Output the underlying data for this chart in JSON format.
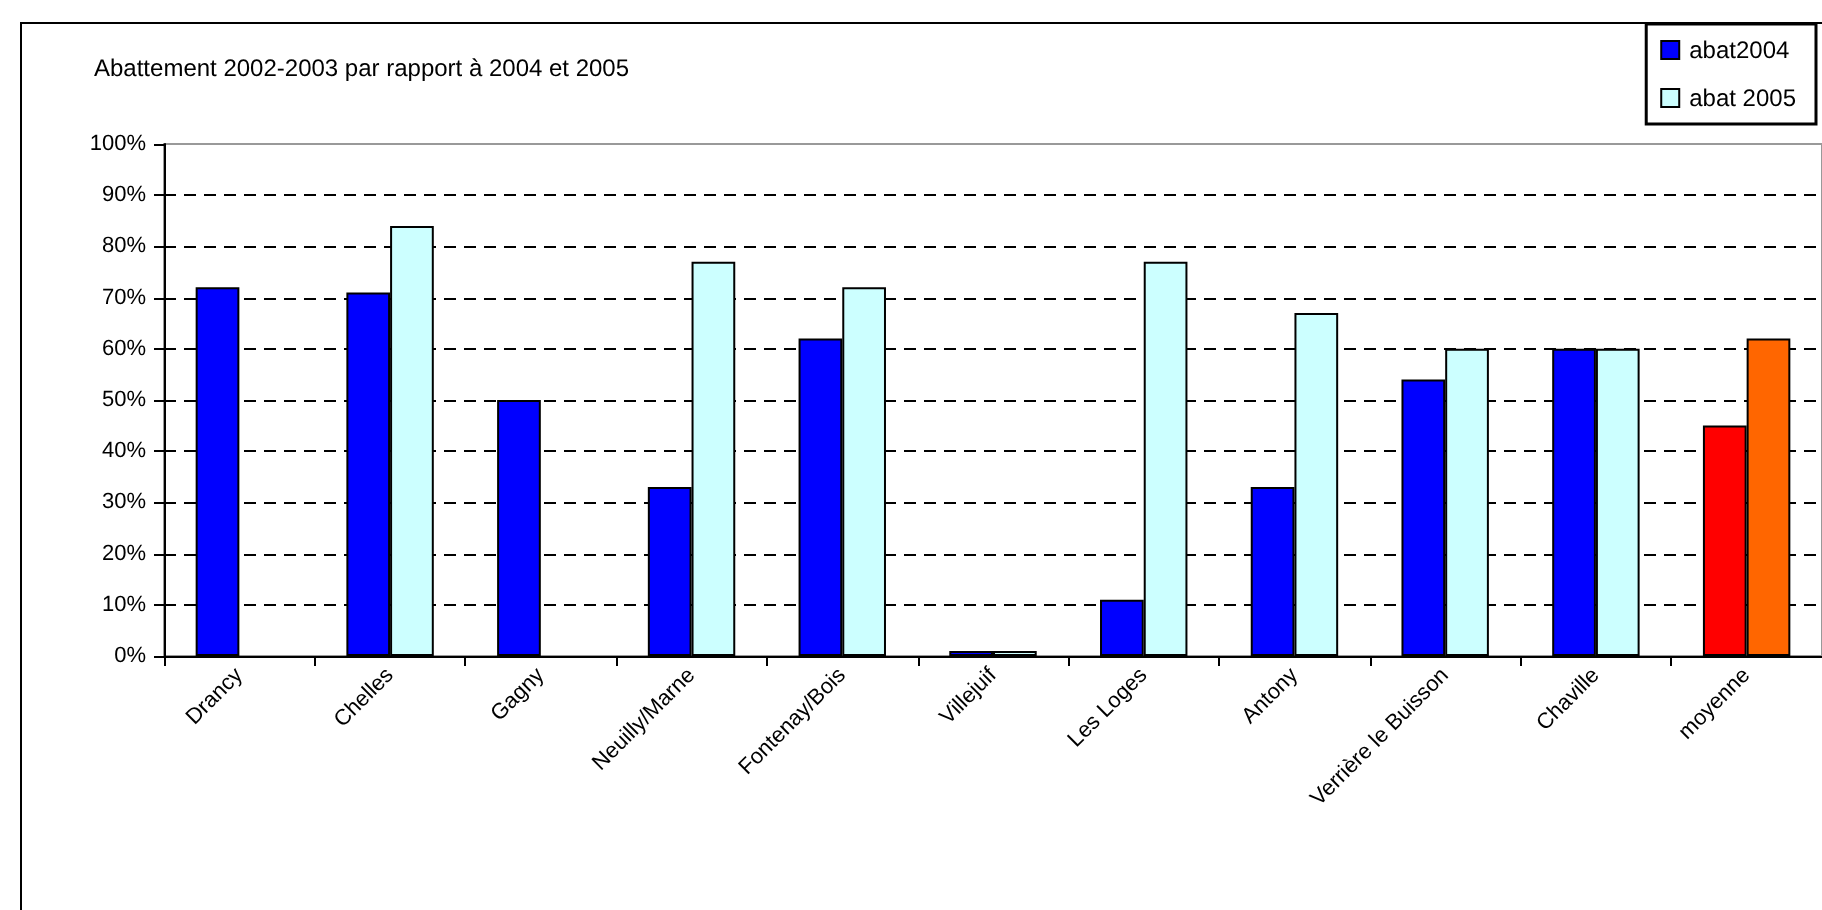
{
  "chart_data": {
    "type": "bar",
    "title": "Abattement 2002-2003 par rapport à 2004 et 2005",
    "categories": [
      "Drancy",
      "Chelles",
      "Gagny",
      "Neuilly/Marne",
      "Fontenay/Bois",
      "Villejuif",
      "Les Loges",
      "Antony",
      "Verrière le Buisson",
      "Chaville",
      "moyenne"
    ],
    "series": [
      {
        "name": "abat2004",
        "color": "#0000ff",
        "colors": [
          "#0000ff",
          "#0000ff",
          "#0000ff",
          "#0000ff",
          "#0000ff",
          "#0000ff",
          "#0000ff",
          "#0000ff",
          "#0000ff",
          "#0000ff",
          "#ff0000"
        ],
        "values": [
          72,
          71,
          50,
          33,
          62,
          1,
          11,
          33,
          54,
          60,
          45
        ]
      },
      {
        "name": "abat 2005",
        "color": "#ccffff",
        "colors": [
          null,
          "#ccffff",
          null,
          "#ccffff",
          "#ccffff",
          "#ccffff",
          "#ccffff",
          "#ccffff",
          "#ccffff",
          "#ccffff",
          "#ff6600"
        ],
        "values": [
          null,
          84,
          null,
          77,
          72,
          1,
          77,
          67,
          60,
          60,
          62
        ]
      }
    ],
    "ylim": [
      0,
      100
    ],
    "yticks": [
      {
        "value": 0,
        "label": "0%"
      },
      {
        "value": 10,
        "label": "10%"
      },
      {
        "value": 20,
        "label": "20%"
      },
      {
        "value": 30,
        "label": "30%"
      },
      {
        "value": 40,
        "label": "40%"
      },
      {
        "value": 50,
        "label": "50%"
      },
      {
        "value": 60,
        "label": "60%"
      },
      {
        "value": 70,
        "label": "70%"
      },
      {
        "value": 80,
        "label": "80%"
      },
      {
        "value": 90,
        "label": "90%"
      },
      {
        "value": 100,
        "label": "100%"
      }
    ],
    "grid": "y",
    "legend": "top right"
  }
}
